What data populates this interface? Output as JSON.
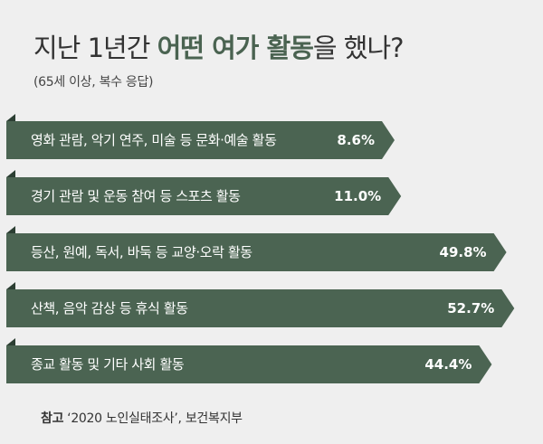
{
  "title_plain_1": "지난 1년간",
  "title_strong": "어떤 여가 활동",
  "title_plain_2": "을 했나?",
  "subtitle": "(65세 이상, 복수 응답)",
  "source_key": "참고",
  "source_text": "‘2020 노인실태조사’, 보건복지부",
  "colors": {
    "bar": "#4b6452",
    "bar_fold": "#2c3f33",
    "background": "#efefef",
    "title_accent": "#4a6351"
  },
  "chart_data": {
    "type": "bar",
    "orientation": "horizontal",
    "unit": "%",
    "categories": [
      "영화 관람, 악기 연주, 미술 등 문화·예술 활동",
      "경기 관람 및 운동 참여 등 스포츠 활동",
      "등산, 원예, 독서, 바둑 등 교양·오락 활동",
      "산책, 음악 감상 등 휴식 활동",
      "종교 활동 및 기타 사회 활동"
    ],
    "values": [
      8.6,
      11.0,
      49.8,
      52.7,
      44.4
    ],
    "value_labels": [
      "8.6%",
      "11.0%",
      "49.8%",
      "52.7%",
      "44.4%"
    ]
  }
}
